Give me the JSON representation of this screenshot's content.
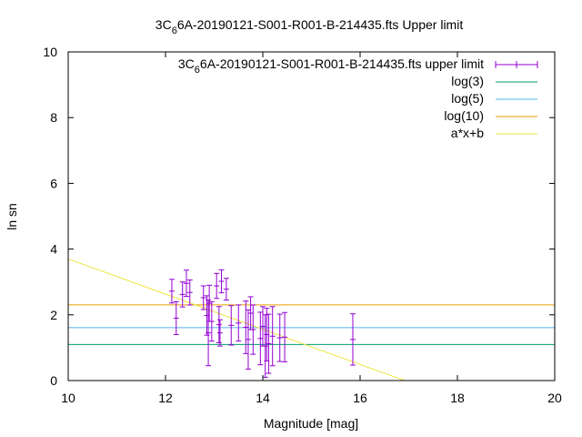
{
  "chart_data": {
    "type": "scatter",
    "title": {
      "prefix": "3C",
      "sub": "6",
      "suffix": "6A-20190121-S001-R001-B-214435.fts Upper limit"
    },
    "xlabel": "Magnitude [mag]",
    "ylabel": "ln sn",
    "xlim": [
      10,
      20
    ],
    "ylim": [
      0,
      10
    ],
    "xticks": [
      "10",
      "12",
      "14",
      "16",
      "18",
      "20"
    ],
    "yticks": [
      "0",
      "2",
      "4",
      "6",
      "8",
      "10"
    ],
    "grid": false,
    "legend_position": "top-right",
    "series": [
      {
        "name": {
          "prefix": "3C",
          "sub": "6",
          "suffix": "6A-20190121-S001-R001-B-214435.fts upper limit"
        },
        "kind": "errorbars",
        "color": "#9400d3",
        "points": [
          {
            "x": 12.13,
            "y": 2.72,
            "err": 0.36
          },
          {
            "x": 12.22,
            "y": 1.9,
            "err": 0.5
          },
          {
            "x": 12.35,
            "y": 2.62,
            "err": 0.38
          },
          {
            "x": 12.43,
            "y": 2.96,
            "err": 0.4
          },
          {
            "x": 12.5,
            "y": 2.68,
            "err": 0.38
          },
          {
            "x": 12.78,
            "y": 2.52,
            "err": 0.36
          },
          {
            "x": 12.85,
            "y": 1.98,
            "err": 0.6
          },
          {
            "x": 12.88,
            "y": 1.45,
            "err": 1.0
          },
          {
            "x": 12.9,
            "y": 2.35,
            "err": 0.55
          },
          {
            "x": 12.95,
            "y": 1.8,
            "err": 0.6
          },
          {
            "x": 13.05,
            "y": 2.88,
            "err": 0.38
          },
          {
            "x": 13.1,
            "y": 1.7,
            "err": 0.55
          },
          {
            "x": 13.12,
            "y": 1.45,
            "err": 0.4
          },
          {
            "x": 13.15,
            "y": 3.02,
            "err": 0.35
          },
          {
            "x": 13.25,
            "y": 2.78,
            "err": 0.33
          },
          {
            "x": 13.35,
            "y": 1.68,
            "err": 0.6
          },
          {
            "x": 13.5,
            "y": 1.75,
            "err": 0.55
          },
          {
            "x": 13.65,
            "y": 1.62,
            "err": 0.8
          },
          {
            "x": 13.7,
            "y": 1.25,
            "err": 0.9
          },
          {
            "x": 13.75,
            "y": 2.05,
            "err": 0.5
          },
          {
            "x": 13.8,
            "y": 1.55,
            "err": 0.75
          },
          {
            "x": 13.95,
            "y": 1.28,
            "err": 0.8
          },
          {
            "x": 14.0,
            "y": 1.65,
            "err": 0.6
          },
          {
            "x": 14.05,
            "y": 1.05,
            "err": 0.95
          },
          {
            "x": 14.08,
            "y": 1.4,
            "err": 0.8
          },
          {
            "x": 14.12,
            "y": 1.12,
            "err": 0.9
          },
          {
            "x": 14.2,
            "y": 1.35,
            "err": 0.9
          },
          {
            "x": 14.35,
            "y": 1.3,
            "err": 0.72
          },
          {
            "x": 14.45,
            "y": 1.32,
            "err": 0.75
          },
          {
            "x": 15.85,
            "y": 1.25,
            "err": 0.78
          }
        ]
      },
      {
        "name": "log(3)",
        "kind": "hline",
        "y": 1.0986,
        "color": "#009e73"
      },
      {
        "name": "log(5)",
        "kind": "hline",
        "y": 1.6094,
        "color": "#56b4e9"
      },
      {
        "name": "log(10)",
        "kind": "hline",
        "y": 2.3026,
        "color": "#e69f00"
      },
      {
        "name": "a*x+b",
        "kind": "line",
        "slope": -0.535,
        "intercept": 9.05,
        "color": "#f0e442"
      }
    ]
  }
}
